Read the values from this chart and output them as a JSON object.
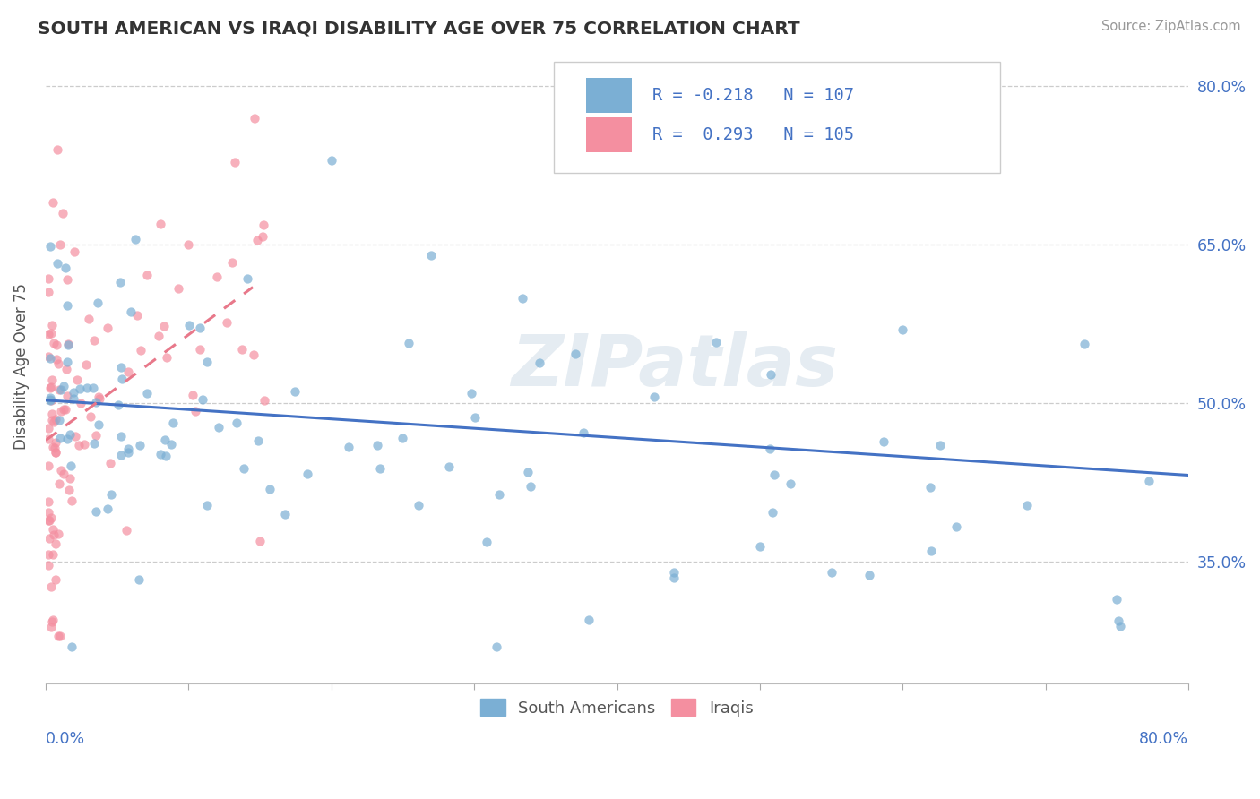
{
  "title": "SOUTH AMERICAN VS IRAQI DISABILITY AGE OVER 75 CORRELATION CHART",
  "source": "Source: ZipAtlas.com",
  "ylabel": "Disability Age Over 75",
  "yticks": [
    0.35,
    0.5,
    0.65,
    0.8
  ],
  "ytick_labels": [
    "35.0%",
    "50.0%",
    "65.0%",
    "80.0%"
  ],
  "xmin": 0.0,
  "xmax": 0.8,
  "ymin": 0.235,
  "ymax": 0.835,
  "south_american_color": "#7bafd4",
  "iraqi_color": "#f48fa0",
  "trend_sa_color": "#4472c4",
  "trend_iraq_color": "#e8788a",
  "watermark_text": "ZIPatlas",
  "R_sa": -0.218,
  "N_sa": 107,
  "R_iraq": 0.293,
  "N_iraq": 105,
  "legend_label_sa": "R = -0.218   N = 107",
  "legend_label_iraq": "R =  0.293   N = 105",
  "bottom_legend_sa": "South Americans",
  "bottom_legend_iraq": "Iraqis",
  "trend_sa_x0": 0.0,
  "trend_sa_x1": 0.8,
  "trend_sa_y0": 0.503,
  "trend_sa_y1": 0.432,
  "trend_iraq_x0": 0.0,
  "trend_iraq_x1": 0.145,
  "trend_iraq_y0": 0.465,
  "trend_iraq_y1": 0.61
}
